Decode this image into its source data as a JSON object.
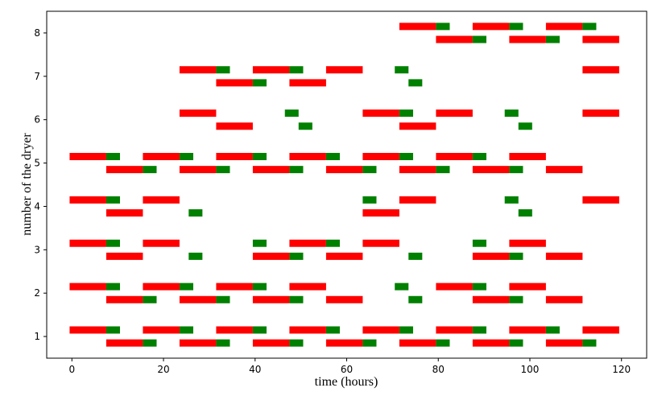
{
  "chart_data": {
    "type": "gantt",
    "xlabel": "time (hours)",
    "ylabel": "number of the dryer",
    "xlim": [
      -5.5,
      125.5
    ],
    "ylim": [
      0.5,
      8.5
    ],
    "x_ticks": [
      0,
      20,
      40,
      60,
      80,
      100,
      120
    ],
    "y_ticks": [
      1,
      2,
      3,
      4,
      5,
      6,
      7,
      8
    ],
    "grid": false,
    "row_offset": 0.15,
    "colors": {
      "red": "#ff0000",
      "green": "#008000"
    },
    "rows": [
      {
        "dryer": 1,
        "upper": [
          {
            "start": -0.5,
            "end": 7.5,
            "color": "red"
          },
          {
            "start": 7.5,
            "end": 10.5,
            "color": "green"
          },
          {
            "start": 15.5,
            "end": 23.5,
            "color": "red"
          },
          {
            "start": 23.5,
            "end": 26.5,
            "color": "green"
          },
          {
            "start": 31.5,
            "end": 39.5,
            "color": "red"
          },
          {
            "start": 39.5,
            "end": 42.5,
            "color": "green"
          },
          {
            "start": 47.5,
            "end": 55.5,
            "color": "red"
          },
          {
            "start": 55.5,
            "end": 58.5,
            "color": "green"
          },
          {
            "start": 63.5,
            "end": 71.5,
            "color": "red"
          },
          {
            "start": 71.5,
            "end": 74.5,
            "color": "green"
          },
          {
            "start": 79.5,
            "end": 87.5,
            "color": "red"
          },
          {
            "start": 87.5,
            "end": 90.5,
            "color": "green"
          },
          {
            "start": 95.5,
            "end": 103.5,
            "color": "red"
          },
          {
            "start": 103.5,
            "end": 106.5,
            "color": "green"
          },
          {
            "start": 111.5,
            "end": 119.5,
            "color": "red"
          }
        ],
        "lower": [
          {
            "start": 7.5,
            "end": 15.5,
            "color": "red"
          },
          {
            "start": 15.5,
            "end": 18.5,
            "color": "green"
          },
          {
            "start": 23.5,
            "end": 31.5,
            "color": "red"
          },
          {
            "start": 31.5,
            "end": 34.5,
            "color": "green"
          },
          {
            "start": 39.5,
            "end": 47.5,
            "color": "red"
          },
          {
            "start": 47.5,
            "end": 50.5,
            "color": "green"
          },
          {
            "start": 55.5,
            "end": 63.5,
            "color": "red"
          },
          {
            "start": 63.5,
            "end": 66.5,
            "color": "green"
          },
          {
            "start": 71.5,
            "end": 79.5,
            "color": "red"
          },
          {
            "start": 79.5,
            "end": 82.5,
            "color": "green"
          },
          {
            "start": 87.5,
            "end": 95.5,
            "color": "red"
          },
          {
            "start": 95.5,
            "end": 98.5,
            "color": "green"
          },
          {
            "start": 103.5,
            "end": 111.5,
            "color": "red"
          },
          {
            "start": 111.5,
            "end": 114.5,
            "color": "green"
          }
        ]
      },
      {
        "dryer": 2,
        "upper": [
          {
            "start": -0.5,
            "end": 7.5,
            "color": "red"
          },
          {
            "start": 7.5,
            "end": 10.5,
            "color": "green"
          },
          {
            "start": 15.5,
            "end": 23.5,
            "color": "red"
          },
          {
            "start": 23.5,
            "end": 26.5,
            "color": "green"
          },
          {
            "start": 31.5,
            "end": 39.5,
            "color": "red"
          },
          {
            "start": 39.5,
            "end": 42.5,
            "color": "green"
          },
          {
            "start": 47.5,
            "end": 55.5,
            "color": "red"
          },
          {
            "start": 70.5,
            "end": 73.5,
            "color": "green"
          },
          {
            "start": 79.5,
            "end": 87.5,
            "color": "red"
          },
          {
            "start": 87.5,
            "end": 90.5,
            "color": "green"
          },
          {
            "start": 95.5,
            "end": 103.5,
            "color": "red"
          }
        ],
        "lower": [
          {
            "start": 7.5,
            "end": 15.5,
            "color": "red"
          },
          {
            "start": 15.5,
            "end": 18.5,
            "color": "green"
          },
          {
            "start": 23.5,
            "end": 31.5,
            "color": "red"
          },
          {
            "start": 31.5,
            "end": 34.5,
            "color": "green"
          },
          {
            "start": 39.5,
            "end": 47.5,
            "color": "red"
          },
          {
            "start": 47.5,
            "end": 50.5,
            "color": "green"
          },
          {
            "start": 55.5,
            "end": 63.5,
            "color": "red"
          },
          {
            "start": 73.5,
            "end": 76.5,
            "color": "green"
          },
          {
            "start": 87.5,
            "end": 95.5,
            "color": "red"
          },
          {
            "start": 95.5,
            "end": 98.5,
            "color": "green"
          },
          {
            "start": 103.5,
            "end": 111.5,
            "color": "red"
          }
        ]
      },
      {
        "dryer": 3,
        "upper": [
          {
            "start": -0.5,
            "end": 7.5,
            "color": "red"
          },
          {
            "start": 7.5,
            "end": 10.5,
            "color": "green"
          },
          {
            "start": 15.5,
            "end": 23.5,
            "color": "red"
          },
          {
            "start": 39.5,
            "end": 42.5,
            "color": "green"
          },
          {
            "start": 47.5,
            "end": 55.5,
            "color": "red"
          },
          {
            "start": 55.5,
            "end": 58.5,
            "color": "green"
          },
          {
            "start": 63.5,
            "end": 71.5,
            "color": "red"
          },
          {
            "start": 87.5,
            "end": 90.5,
            "color": "green"
          },
          {
            "start": 95.5,
            "end": 103.5,
            "color": "red"
          }
        ],
        "lower": [
          {
            "start": 7.5,
            "end": 15.5,
            "color": "red"
          },
          {
            "start": 25.5,
            "end": 28.5,
            "color": "green"
          },
          {
            "start": 39.5,
            "end": 47.5,
            "color": "red"
          },
          {
            "start": 47.5,
            "end": 50.5,
            "color": "green"
          },
          {
            "start": 55.5,
            "end": 63.5,
            "color": "red"
          },
          {
            "start": 73.5,
            "end": 76.5,
            "color": "green"
          },
          {
            "start": 87.5,
            "end": 95.5,
            "color": "red"
          },
          {
            "start": 95.5,
            "end": 98.5,
            "color": "green"
          },
          {
            "start": 103.5,
            "end": 111.5,
            "color": "red"
          }
        ]
      },
      {
        "dryer": 4,
        "upper": [
          {
            "start": -0.5,
            "end": 7.5,
            "color": "red"
          },
          {
            "start": 7.5,
            "end": 10.5,
            "color": "green"
          },
          {
            "start": 15.5,
            "end": 23.5,
            "color": "red"
          },
          {
            "start": 63.5,
            "end": 66.5,
            "color": "green"
          },
          {
            "start": 71.5,
            "end": 79.5,
            "color": "red"
          },
          {
            "start": 94.5,
            "end": 97.5,
            "color": "green"
          },
          {
            "start": 111.5,
            "end": 119.5,
            "color": "red"
          }
        ],
        "lower": [
          {
            "start": 7.5,
            "end": 15.5,
            "color": "red"
          },
          {
            "start": 25.5,
            "end": 28.5,
            "color": "green"
          },
          {
            "start": 63.5,
            "end": 71.5,
            "color": "red"
          },
          {
            "start": 97.5,
            "end": 100.5,
            "color": "green"
          }
        ]
      },
      {
        "dryer": 5,
        "upper": [
          {
            "start": -0.5,
            "end": 7.5,
            "color": "red"
          },
          {
            "start": 7.5,
            "end": 10.5,
            "color": "green"
          },
          {
            "start": 15.5,
            "end": 23.5,
            "color": "red"
          },
          {
            "start": 23.5,
            "end": 26.5,
            "color": "green"
          },
          {
            "start": 31.5,
            "end": 39.5,
            "color": "red"
          },
          {
            "start": 39.5,
            "end": 42.5,
            "color": "green"
          },
          {
            "start": 47.5,
            "end": 55.5,
            "color": "red"
          },
          {
            "start": 55.5,
            "end": 58.5,
            "color": "green"
          },
          {
            "start": 63.5,
            "end": 71.5,
            "color": "red"
          },
          {
            "start": 71.5,
            "end": 74.5,
            "color": "green"
          },
          {
            "start": 79.5,
            "end": 87.5,
            "color": "red"
          },
          {
            "start": 87.5,
            "end": 90.5,
            "color": "green"
          },
          {
            "start": 95.5,
            "end": 103.5,
            "color": "red"
          }
        ],
        "lower": [
          {
            "start": 7.5,
            "end": 15.5,
            "color": "red"
          },
          {
            "start": 15.5,
            "end": 18.5,
            "color": "green"
          },
          {
            "start": 23.5,
            "end": 31.5,
            "color": "red"
          },
          {
            "start": 31.5,
            "end": 34.5,
            "color": "green"
          },
          {
            "start": 39.5,
            "end": 47.5,
            "color": "red"
          },
          {
            "start": 47.5,
            "end": 50.5,
            "color": "green"
          },
          {
            "start": 55.5,
            "end": 63.5,
            "color": "red"
          },
          {
            "start": 63.5,
            "end": 66.5,
            "color": "green"
          },
          {
            "start": 71.5,
            "end": 79.5,
            "color": "red"
          },
          {
            "start": 79.5,
            "end": 82.5,
            "color": "green"
          },
          {
            "start": 87.5,
            "end": 95.5,
            "color": "red"
          },
          {
            "start": 95.5,
            "end": 98.5,
            "color": "green"
          },
          {
            "start": 103.5,
            "end": 111.5,
            "color": "red"
          }
        ]
      },
      {
        "dryer": 6,
        "upper": [
          {
            "start": 23.5,
            "end": 31.5,
            "color": "red"
          },
          {
            "start": 46.5,
            "end": 49.5,
            "color": "green"
          },
          {
            "start": 63.5,
            "end": 71.5,
            "color": "red"
          },
          {
            "start": 71.5,
            "end": 74.5,
            "color": "green"
          },
          {
            "start": 79.5,
            "end": 87.5,
            "color": "red"
          },
          {
            "start": 94.5,
            "end": 97.5,
            "color": "green"
          },
          {
            "start": 111.5,
            "end": 119.5,
            "color": "red"
          }
        ],
        "lower": [
          {
            "start": 31.5,
            "end": 39.5,
            "color": "red"
          },
          {
            "start": 49.5,
            "end": 52.5,
            "color": "green"
          },
          {
            "start": 71.5,
            "end": 79.5,
            "color": "red"
          },
          {
            "start": 97.5,
            "end": 100.5,
            "color": "green"
          }
        ]
      },
      {
        "dryer": 7,
        "upper": [
          {
            "start": 23.5,
            "end": 31.5,
            "color": "red"
          },
          {
            "start": 31.5,
            "end": 34.5,
            "color": "green"
          },
          {
            "start": 39.5,
            "end": 47.5,
            "color": "red"
          },
          {
            "start": 47.5,
            "end": 50.5,
            "color": "green"
          },
          {
            "start": 55.5,
            "end": 63.5,
            "color": "red"
          },
          {
            "start": 70.5,
            "end": 73.5,
            "color": "green"
          },
          {
            "start": 111.5,
            "end": 119.5,
            "color": "red"
          }
        ],
        "lower": [
          {
            "start": 31.5,
            "end": 39.5,
            "color": "red"
          },
          {
            "start": 39.5,
            "end": 42.5,
            "color": "green"
          },
          {
            "start": 47.5,
            "end": 55.5,
            "color": "red"
          },
          {
            "start": 73.5,
            "end": 76.5,
            "color": "green"
          }
        ]
      },
      {
        "dryer": 8,
        "upper": [
          {
            "start": 71.5,
            "end": 79.5,
            "color": "red"
          },
          {
            "start": 79.5,
            "end": 82.5,
            "color": "green"
          },
          {
            "start": 87.5,
            "end": 95.5,
            "color": "red"
          },
          {
            "start": 95.5,
            "end": 98.5,
            "color": "green"
          },
          {
            "start": 103.5,
            "end": 111.5,
            "color": "red"
          },
          {
            "start": 111.5,
            "end": 114.5,
            "color": "green"
          }
        ],
        "lower": [
          {
            "start": 79.5,
            "end": 87.5,
            "color": "red"
          },
          {
            "start": 87.5,
            "end": 90.5,
            "color": "green"
          },
          {
            "start": 95.5,
            "end": 103.5,
            "color": "red"
          },
          {
            "start": 103.5,
            "end": 106.5,
            "color": "green"
          },
          {
            "start": 111.5,
            "end": 119.5,
            "color": "red"
          }
        ]
      }
    ]
  }
}
